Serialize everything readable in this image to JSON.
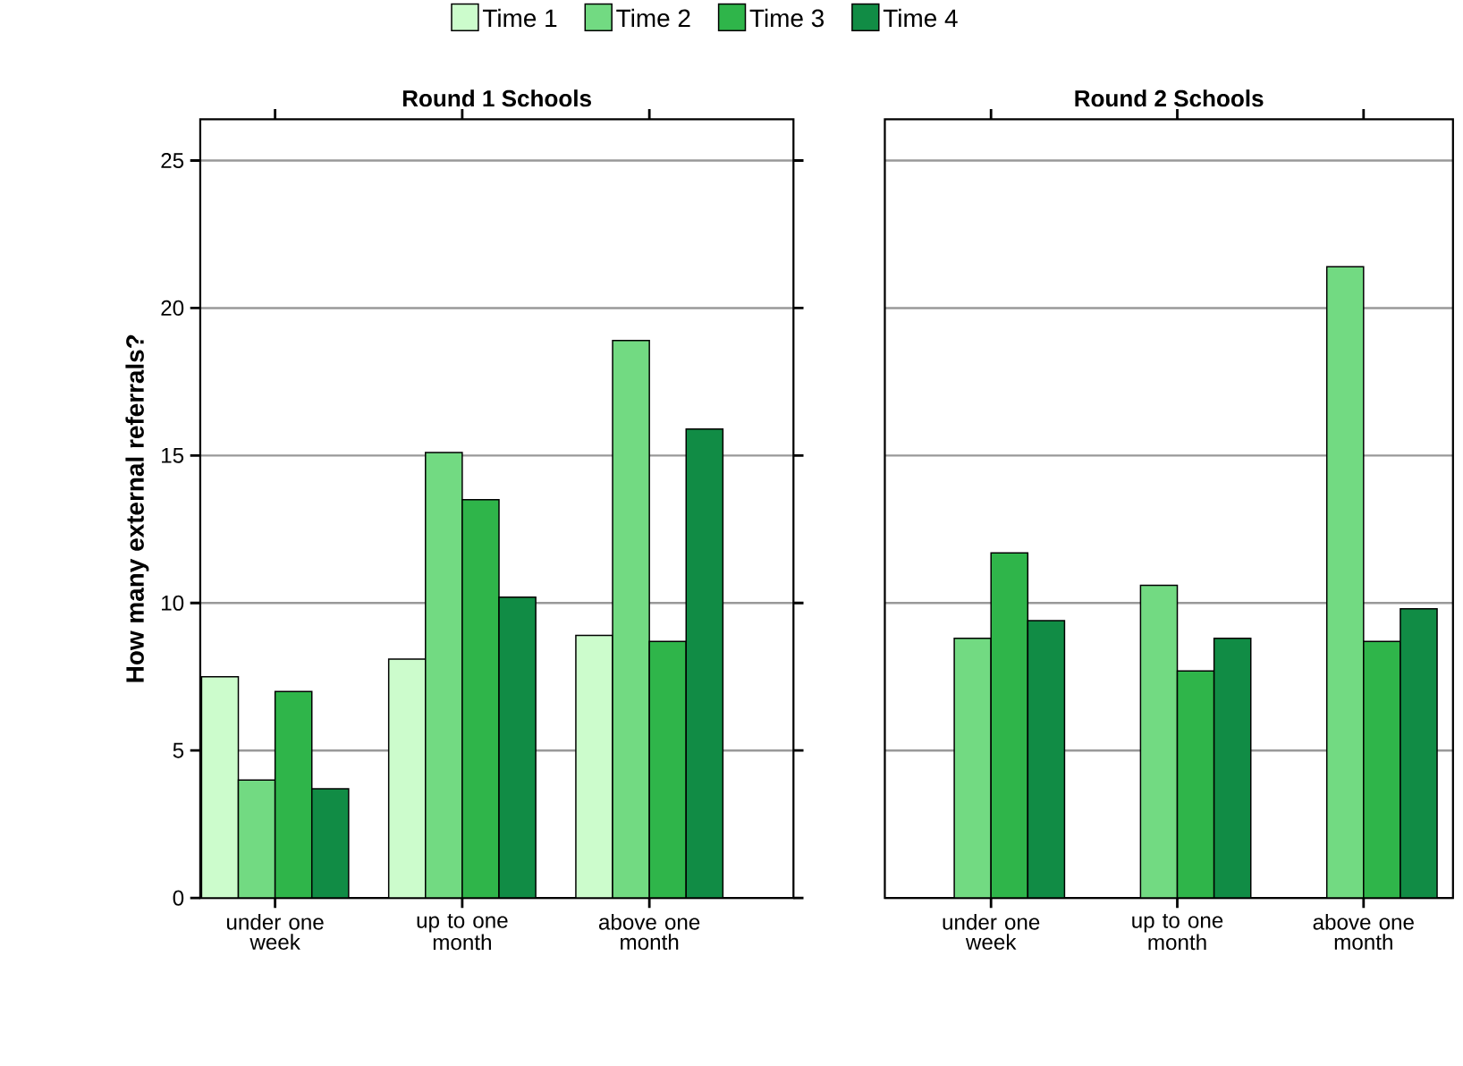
{
  "chart_data": [
    {
      "type": "bar",
      "title": "Round 1 Schools",
      "ylabel": "How many external referrals?",
      "categories": [
        "under one week",
        "up to one month",
        "above one month"
      ],
      "series": [
        {
          "name": "Time 1",
          "color": "#ccfccc",
          "values": [
            7.5,
            8.1,
            8.9
          ]
        },
        {
          "name": "Time 2",
          "color": "#72da82",
          "values": [
            4.0,
            15.1,
            18.9
          ]
        },
        {
          "name": "Time 3",
          "color": "#2fb54a",
          "values": [
            7.0,
            13.5,
            8.7
          ]
        },
        {
          "name": "Time 4",
          "color": "#118c45",
          "values": [
            3.7,
            10.2,
            15.9
          ]
        }
      ],
      "ylim": [
        0,
        26.4
      ],
      "yticks": [
        0,
        5,
        10,
        15,
        20,
        25
      ],
      "grid": "y",
      "legend": "top"
    },
    {
      "type": "bar",
      "title": "Round 2 Schools",
      "categories": [
        "under one week",
        "up to one month",
        "above one month"
      ],
      "series": [
        {
          "color": "#ccfccc",
          "values": [
            null,
            null,
            null
          ]
        },
        {
          "color": "#72da82",
          "values": [
            8.8,
            10.6,
            21.4
          ]
        },
        {
          "color": "#2fb54a",
          "values": [
            11.7,
            7.7,
            8.7
          ]
        },
        {
          "color": "#118c45",
          "values": [
            9.4,
            8.8,
            9.8
          ]
        }
      ],
      "ylim": [
        0,
        26.4
      ],
      "yticks": [
        0,
        5,
        10,
        15,
        20,
        25
      ],
      "grid": "y",
      "tick_labels": "x"
    }
  ]
}
